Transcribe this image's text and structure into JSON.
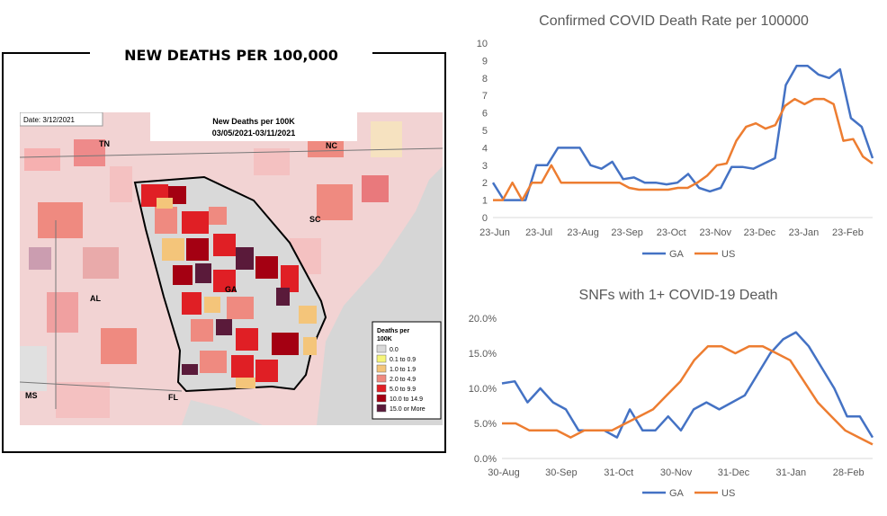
{
  "map": {
    "title": "NEW DEATHS PER 100,000",
    "date_label": "Date: 3/12/2021",
    "inner_title": "New Deaths per 100K",
    "inner_subtitle": "03/05/2021-03/11/2021",
    "state_labels": [
      "TN",
      "NC",
      "SC",
      "GA",
      "AL",
      "MS",
      "FL"
    ],
    "legend_title_1": "Deaths per",
    "legend_title_2": "100K",
    "legend": [
      {
        "label": "0.0",
        "color": "#d9d9d9"
      },
      {
        "label": "0.1 to 0.9",
        "color": "#f6f57a"
      },
      {
        "label": "1.0 to 1.9",
        "color": "#f4c57a"
      },
      {
        "label": "2.0 to 4.9",
        "color": "#ef8a80"
      },
      {
        "label": "5.0 to 9.9",
        "color": "#e01f25"
      },
      {
        "label": "10.0 to 14.9",
        "color": "#a40012"
      },
      {
        "label": "15.0 or More",
        "color": "#5a1a3a"
      }
    ]
  },
  "chart_data": [
    {
      "type": "line",
      "title": "Confirmed COVID Death Rate per 100000",
      "xlabel": "",
      "ylabel": "",
      "ylim": [
        0,
        10
      ],
      "yticks": [
        "0",
        "1",
        "2",
        "3",
        "4",
        "5",
        "6",
        "7",
        "8",
        "9",
        "10"
      ],
      "x_tick_labels": [
        "23-Jun",
        "23-Jul",
        "23-Aug",
        "23-Sep",
        "23-Oct",
        "23-Nov",
        "23-Dec",
        "23-Jan",
        "23-Feb"
      ],
      "legend_position": "bottom",
      "series": [
        {
          "name": "GA",
          "color": "#4472c4",
          "values": [
            2,
            1,
            1,
            1,
            3,
            3,
            4,
            4,
            4,
            3,
            2.8,
            3.2,
            2.2,
            2.3,
            2,
            2,
            1.9,
            2,
            2.5,
            1.7,
            1.5,
            1.7,
            2.9,
            2.9,
            2.8,
            3.1,
            3.4,
            7.6,
            8.7,
            8.7,
            8.2,
            8,
            8.5,
            5.7,
            5.2,
            3.4
          ]
        },
        {
          "name": "US",
          "color": "#ed7d31",
          "values": [
            1,
            1,
            2,
            1,
            2,
            2,
            3,
            2,
            2,
            2,
            2,
            2,
            2,
            2,
            1.7,
            1.6,
            1.6,
            1.6,
            1.6,
            1.7,
            1.7,
            2,
            2.4,
            3,
            3.1,
            4.4,
            5.2,
            5.4,
            5.1,
            5.3,
            6.4,
            6.8,
            6.5,
            6.8,
            6.8,
            6.5,
            4.4,
            4.5,
            3.5,
            3.1
          ]
        }
      ]
    },
    {
      "type": "line",
      "title": "SNFs with 1+ COVID-19 Death",
      "xlabel": "",
      "ylabel": "",
      "ylim": [
        0,
        20
      ],
      "yticks": [
        "0.0%",
        "5.0%",
        "10.0%",
        "15.0%",
        "20.0%"
      ],
      "x_tick_labels": [
        "30-Aug",
        "30-Sep",
        "31-Oct",
        "30-Nov",
        "31-Dec",
        "31-Jan",
        "28-Feb"
      ],
      "legend_position": "bottom",
      "series": [
        {
          "name": "GA",
          "color": "#4472c4",
          "values": [
            10.7,
            11,
            8,
            10,
            8,
            7,
            4,
            4,
            4,
            3,
            7,
            4,
            4,
            6,
            4,
            7,
            8,
            7,
            8,
            9,
            12,
            15,
            17,
            18,
            16,
            13,
            10,
            6,
            6,
            3
          ]
        },
        {
          "name": "US",
          "color": "#ed7d31",
          "values": [
            5,
            5,
            4,
            4,
            4,
            3,
            4,
            4,
            4,
            5,
            6,
            7,
            9,
            11,
            14,
            16,
            16,
            15,
            16,
            16,
            15,
            14,
            11,
            8,
            6,
            4,
            3,
            2
          ]
        }
      ]
    }
  ]
}
